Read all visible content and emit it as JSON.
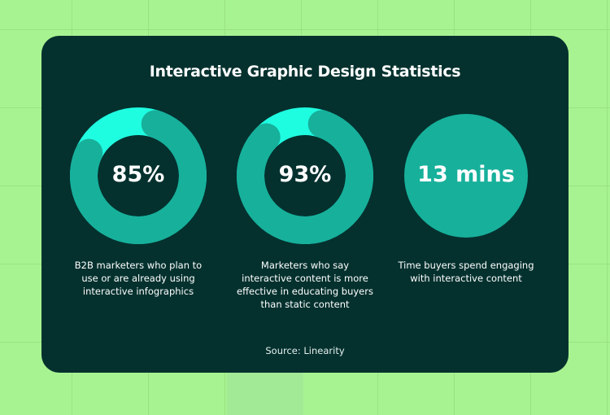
{
  "title": "Interactive Graphic Design Statistics",
  "source": "Source: Linearity",
  "colors": {
    "background": "#a8f391",
    "card": "#04312e",
    "ring_main": "#17b09b",
    "ring_remainder": "#1ffde1",
    "text": "#ffffff"
  },
  "chart_data": [
    {
      "type": "pie",
      "style": "donut",
      "value": 85,
      "label": "85%",
      "description": "B2B marketers who plan to use or are already using interactive infographics"
    },
    {
      "type": "pie",
      "style": "donut",
      "value": 93,
      "label": "93%",
      "description": "Marketers who say interactive content is more effective in educating buyers than static content"
    },
    {
      "type": "pie",
      "style": "circle",
      "value": null,
      "label": "13 mins",
      "description": "Time buyers spend engaging with interactive content"
    }
  ]
}
